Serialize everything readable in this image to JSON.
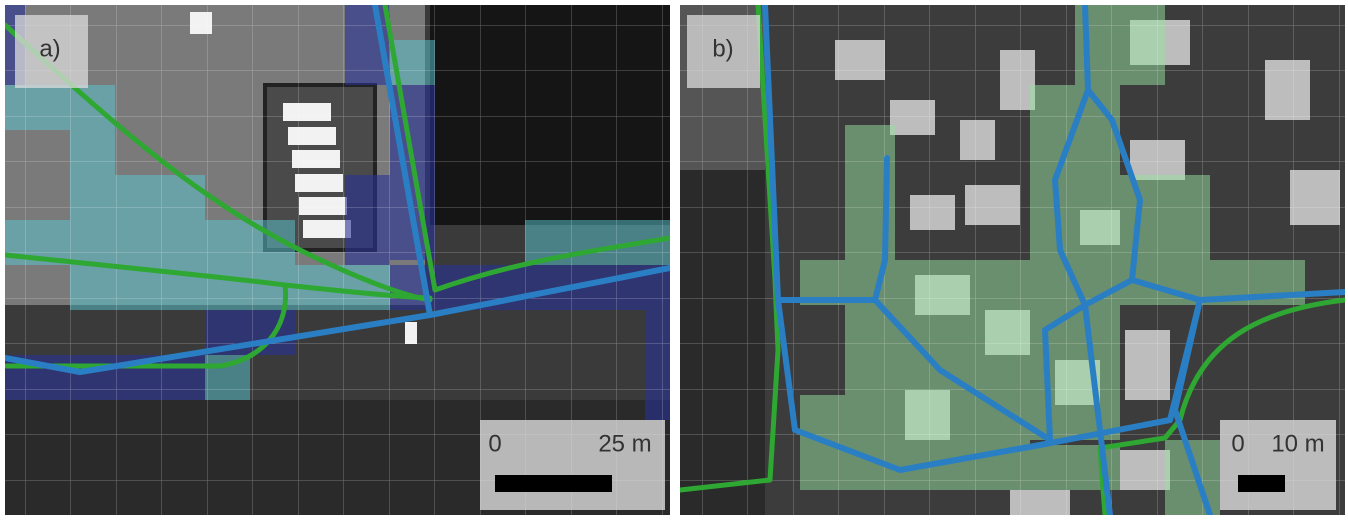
{
  "panels": [
    {
      "label": "a)",
      "scale_bar": {
        "start": "0",
        "end": "25 m"
      }
    },
    {
      "label": "b)",
      "scale_bar": {
        "start": "0",
        "end": "10 m"
      }
    }
  ]
}
